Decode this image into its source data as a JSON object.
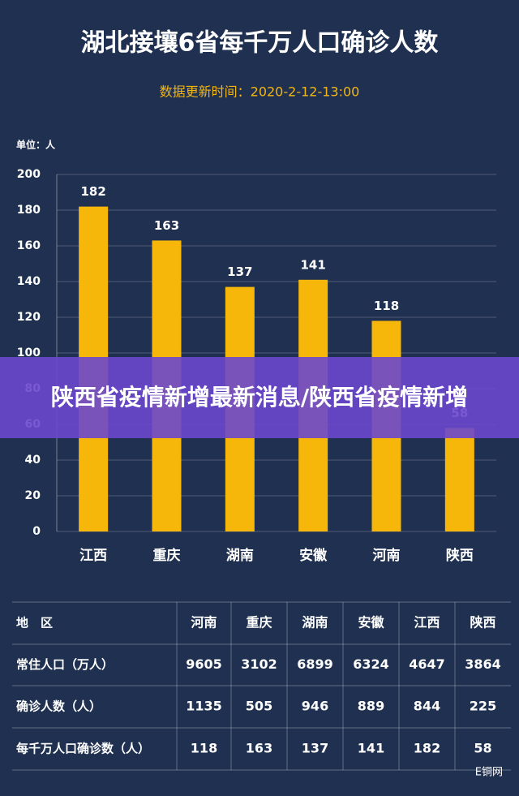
{
  "chart_data": {
    "type": "bar",
    "title": "湖北接壤6省每千万人口确诊人数",
    "subtitle": "数据更新时间：2020-2-12-13:00",
    "unit_label": "单位：人",
    "categories": [
      "江西",
      "重庆",
      "湖南",
      "安徽",
      "河南",
      "陕西"
    ],
    "values": [
      182,
      163,
      137,
      141,
      118,
      58
    ],
    "color": "#f6b70a",
    "ylim": [
      0,
      200
    ],
    "yticks": [
      0,
      20,
      40,
      60,
      80,
      100,
      120,
      140,
      160,
      180,
      200
    ],
    "grid": true
  },
  "table": {
    "header": [
      "地　区",
      "河南",
      "重庆",
      "湖南",
      "安徽",
      "江西",
      "陕西"
    ],
    "rows": [
      [
        "常住人口（万人）",
        9605,
        3102,
        6899,
        6324,
        4647,
        3864
      ],
      [
        "确诊人数（人）",
        1135,
        505,
        946,
        889,
        844,
        225
      ],
      [
        "每千万人口确诊数（人）",
        118,
        163,
        137,
        141,
        182,
        58
      ]
    ]
  },
  "banner": {
    "title": "陕西省疫情新增最新消息/陕西省疫情新增"
  },
  "footer": {
    "source": "E铜网"
  }
}
